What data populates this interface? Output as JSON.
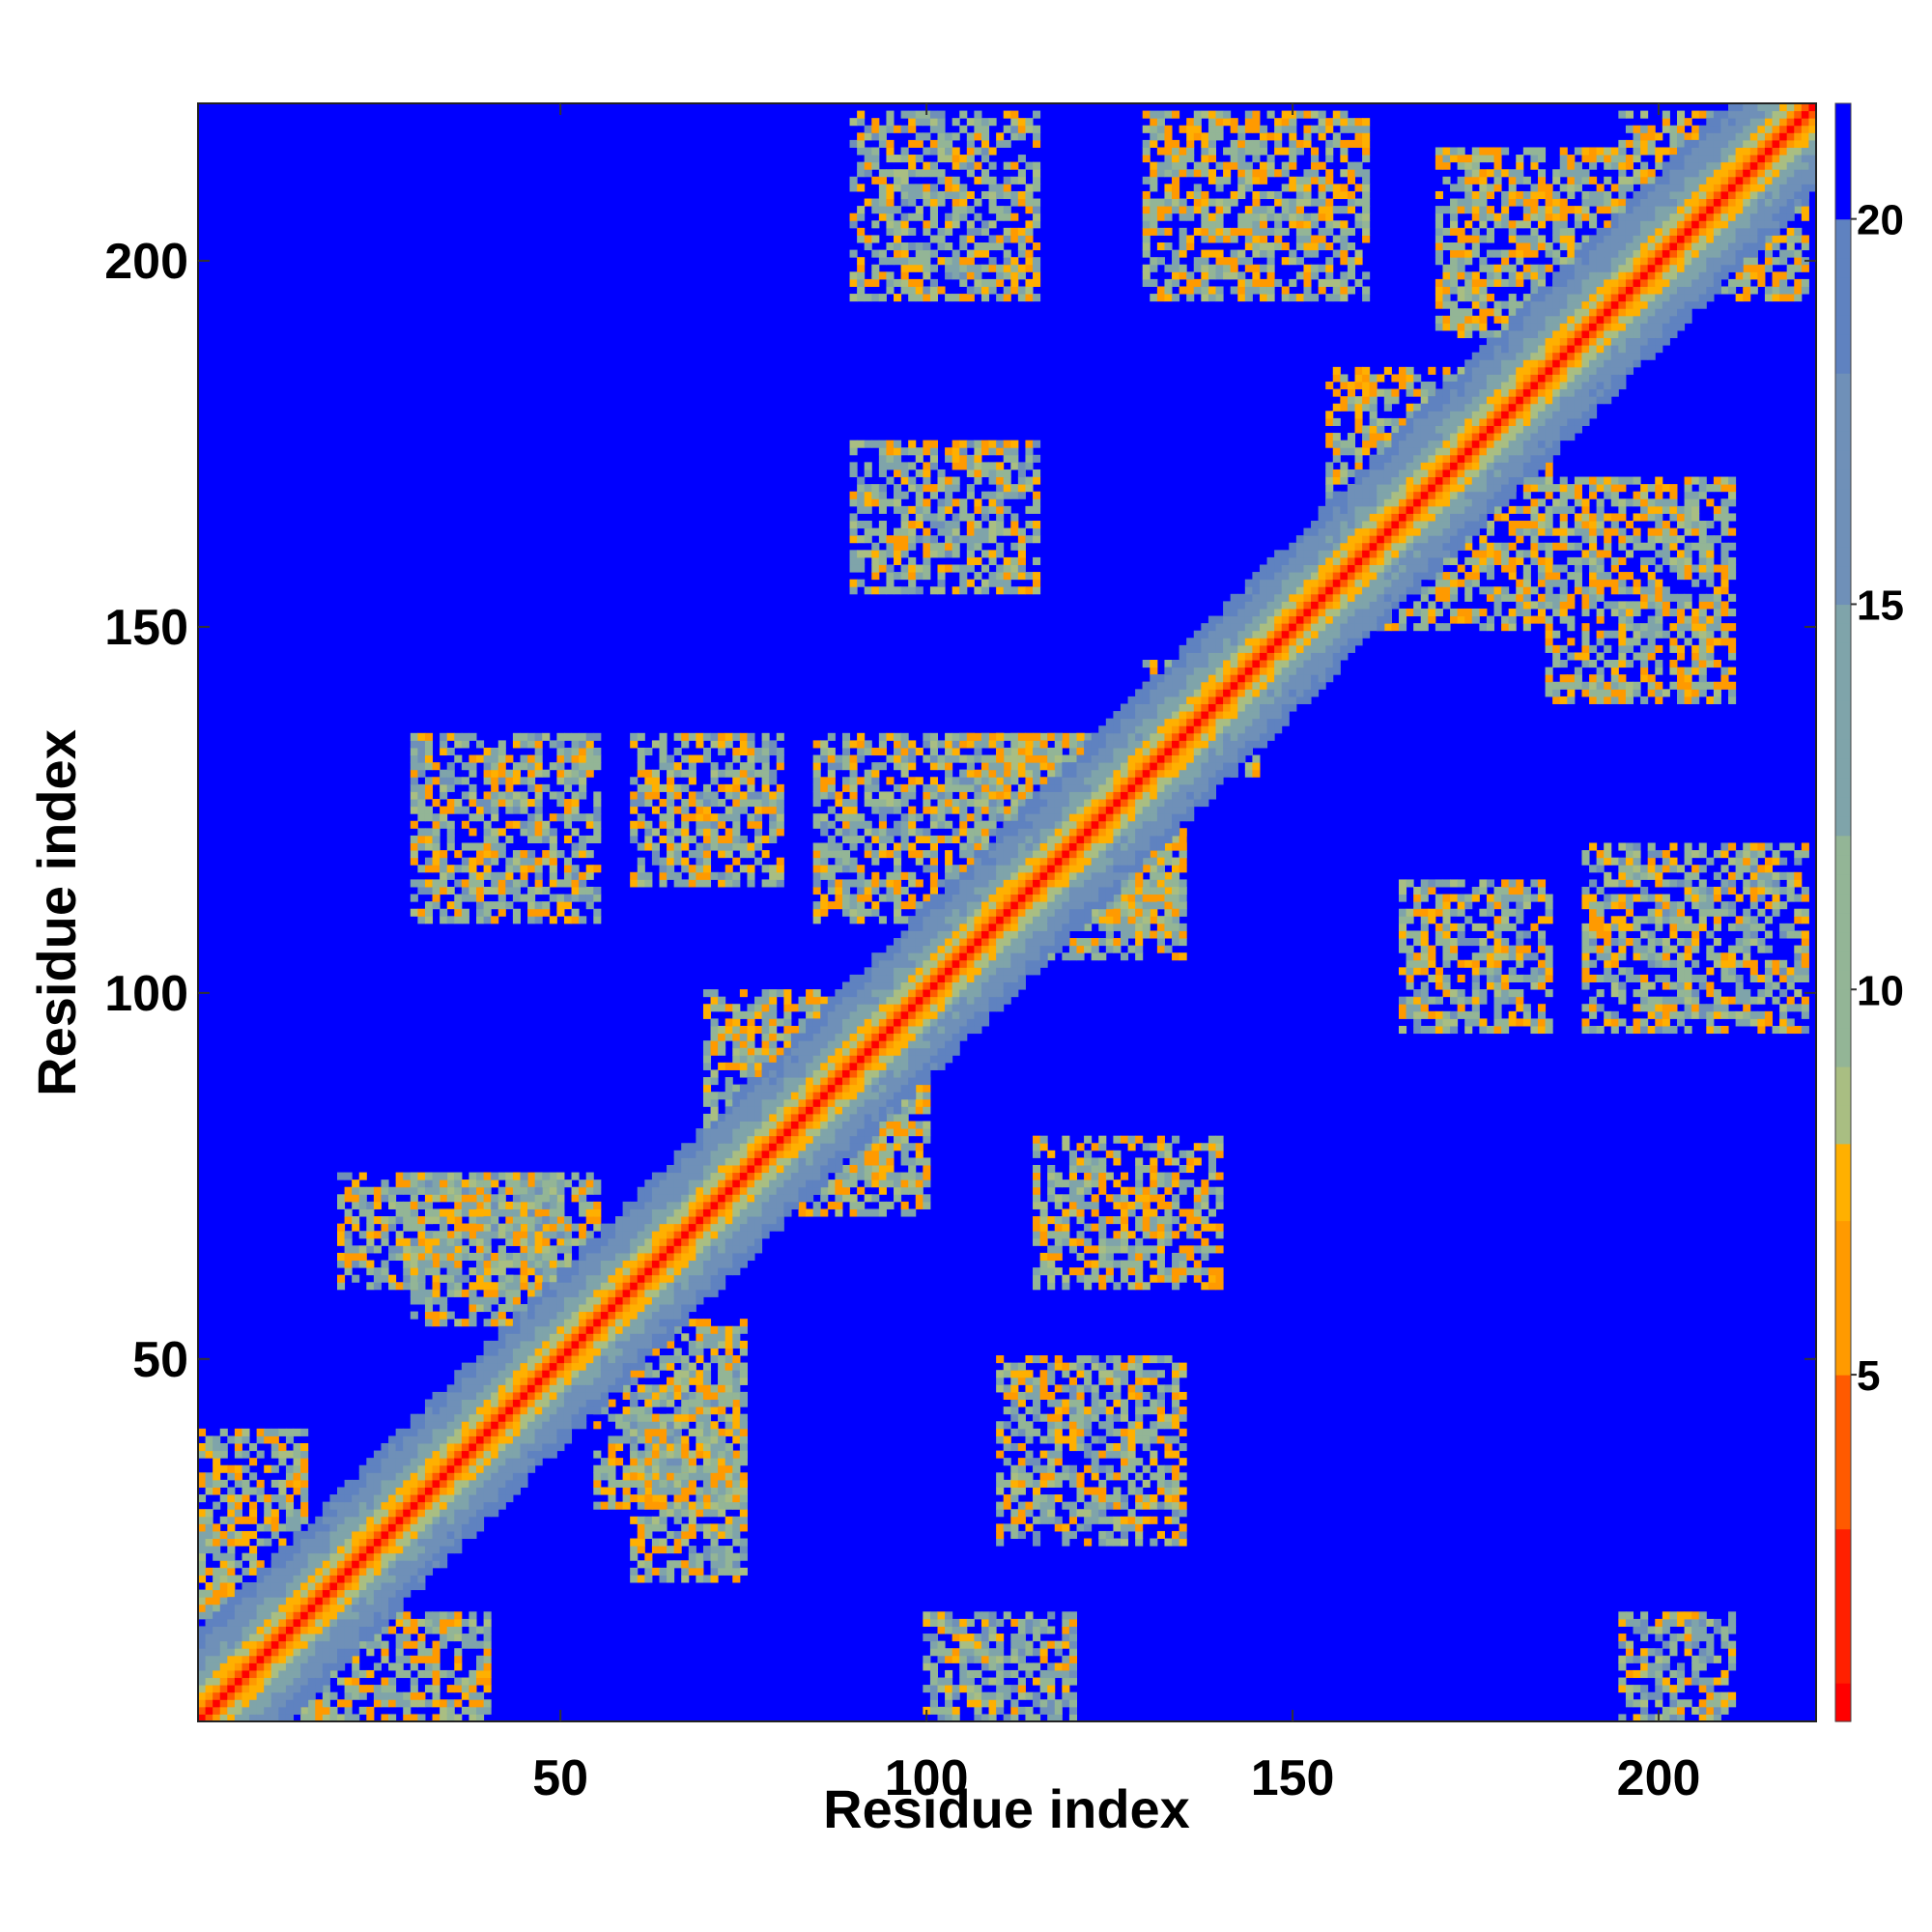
{
  "chart_data": {
    "type": "heatmap",
    "title": "",
    "xlabel": "Residue index",
    "ylabel": "Residue index",
    "n_residues": 221,
    "xlim": [
      1,
      221
    ],
    "ylim": [
      1,
      221
    ],
    "x_ticks": [
      {
        "value": 50,
        "label": "50"
      },
      {
        "value": 100,
        "label": "100"
      },
      {
        "value": 150,
        "label": "150"
      },
      {
        "value": 200,
        "label": "200"
      }
    ],
    "y_ticks": [
      {
        "value": 50,
        "label": "50"
      },
      {
        "value": 100,
        "label": "100"
      },
      {
        "value": 150,
        "label": "150"
      },
      {
        "value": 200,
        "label": "200"
      }
    ],
    "colorbar": {
      "range": [
        0.5,
        21.5
      ],
      "ticks": [
        {
          "value": 5,
          "label": "5"
        },
        {
          "value": 10,
          "label": "10"
        },
        {
          "value": 15,
          "label": "15"
        },
        {
          "value": 20,
          "label": "20"
        }
      ],
      "stops": [
        {
          "value": 1,
          "color": "#ff0000"
        },
        {
          "value": 3,
          "color": "#ff2000"
        },
        {
          "value": 5,
          "color": "#ff5a00"
        },
        {
          "value": 7,
          "color": "#ff9a00"
        },
        {
          "value": 8,
          "color": "#ffb000"
        },
        {
          "value": 9,
          "color": "#a9be82"
        },
        {
          "value": 12,
          "color": "#93b596"
        },
        {
          "value": 15,
          "color": "#7fa4aa"
        },
        {
          "value": 18,
          "color": "#6f90b8"
        },
        {
          "value": 20,
          "color": "#5f82c0"
        },
        {
          "value": 20.01,
          "color": "#0000ff"
        },
        {
          "value": 21.5,
          "color": "#0000ff"
        }
      ]
    },
    "background_color": "#0000ff",
    "diagonal_color": "#ff0000",
    "secondary_structure_blocks": [
      {
        "x": [
          1,
          15
        ],
        "y": [
          1,
          15
        ],
        "level": 8
      },
      {
        "x": [
          15,
          40
        ],
        "y": [
          1,
          15
        ],
        "level": 10
      },
      {
        "x": [
          1,
          15
        ],
        "y": [
          15,
          40
        ],
        "level": 10
      },
      {
        "x": [
          30,
          55
        ],
        "y": [
          55,
          75
        ],
        "level": 10
      },
      {
        "x": [
          55,
          75
        ],
        "y": [
          30,
          55
        ],
        "level": 10
      },
      {
        "x": [
          60,
          75
        ],
        "y": [
          20,
          50
        ],
        "level": 11
      },
      {
        "x": [
          20,
          50
        ],
        "y": [
          60,
          75
        ],
        "level": 11
      },
      {
        "x": [
          70,
          95
        ],
        "y": [
          75,
          100
        ],
        "level": 10
      },
      {
        "x": [
          75,
          100
        ],
        "y": [
          70,
          95
        ],
        "level": 10
      },
      {
        "x": [
          105,
          135
        ],
        "y": [
          110,
          135
        ],
        "level": 10
      },
      {
        "x": [
          110,
          135
        ],
        "y": [
          105,
          135
        ],
        "level": 10
      },
      {
        "x": [
          115,
          140
        ],
        "y": [
          60,
          80
        ],
        "level": 10
      },
      {
        "x": [
          110,
          135
        ],
        "y": [
          25,
          50
        ],
        "level": 11
      },
      {
        "x": [
          30,
          55
        ],
        "y": [
          110,
          135
        ],
        "level": 11
      },
      {
        "x": [
          60,
          80
        ],
        "y": [
          115,
          135
        ],
        "level": 11
      },
      {
        "x": [
          85,
          110
        ],
        "y": [
          110,
          135
        ],
        "level": 11
      },
      {
        "x": [
          90,
          115
        ],
        "y": [
          155,
          175
        ],
        "level": 11
      },
      {
        "x": [
          90,
          115
        ],
        "y": [
          195,
          220
        ],
        "level": 11
      },
      {
        "x": [
          130,
          160
        ],
        "y": [
          195,
          220
        ],
        "level": 10
      },
      {
        "x": [
          155,
          185
        ],
        "y": [
          150,
          185
        ],
        "level": 10
      },
      {
        "x": [
          170,
          195
        ],
        "y": [
          190,
          215
        ],
        "level": 10
      },
      {
        "x": [
          185,
          210
        ],
        "y": [
          140,
          170
        ],
        "level": 10
      },
      {
        "x": [
          195,
          220
        ],
        "y": [
          195,
          220
        ],
        "level": 10
      },
      {
        "x": [
          165,
          185
        ],
        "y": [
          95,
          115
        ],
        "level": 11
      },
      {
        "x": [
          190,
          220
        ],
        "y": [
          95,
          120
        ],
        "level": 11
      },
      {
        "x": [
          195,
          210
        ],
        "y": [
          1,
          15
        ],
        "level": 12
      },
      {
        "x": [
          100,
          120
        ],
        "y": [
          1,
          15
        ],
        "level": 12
      },
      {
        "x": [
          130,
          145
        ],
        "y": [
          130,
          145
        ],
        "level": 10
      }
    ]
  }
}
